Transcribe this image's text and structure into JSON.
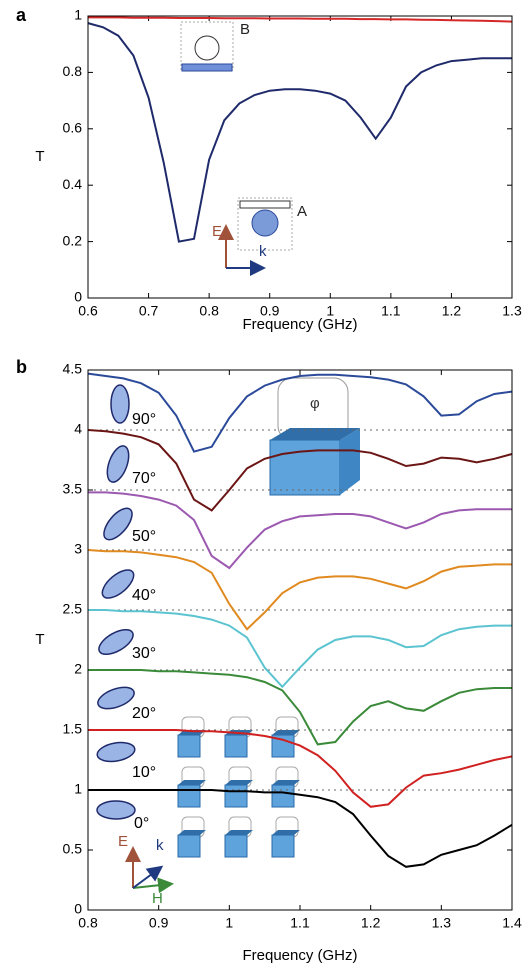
{
  "chart_data": [
    {
      "type": "line",
      "panel_label": "a",
      "x_label": "Frequency (GHz)",
      "y_label": "T",
      "x": [
        0.6,
        0.625,
        0.65,
        0.675,
        0.7,
        0.725,
        0.75,
        0.775,
        0.8,
        0.825,
        0.85,
        0.875,
        0.9,
        0.925,
        0.95,
        0.975,
        1.0,
        1.025,
        1.05,
        1.075,
        1.1,
        1.125,
        1.15,
        1.175,
        1.2,
        1.225,
        1.25,
        1.275,
        1.3
      ],
      "series": [
        {
          "color": "#d62728",
          "values": [
            0.995,
            0.995,
            0.995,
            0.994,
            0.994,
            0.994,
            0.993,
            0.993,
            0.993,
            0.992,
            0.992,
            0.992,
            0.991,
            0.991,
            0.991,
            0.99,
            0.99,
            0.99,
            0.989,
            0.989,
            0.988,
            0.988,
            0.987,
            0.986,
            0.985,
            0.984,
            0.983,
            0.982,
            0.98
          ]
        },
        {
          "color": "#1f2a6b",
          "values": [
            0.975,
            0.96,
            0.93,
            0.86,
            0.71,
            0.48,
            0.2,
            0.21,
            0.49,
            0.63,
            0.69,
            0.72,
            0.735,
            0.74,
            0.74,
            0.735,
            0.725,
            0.7,
            0.64,
            0.565,
            0.64,
            0.75,
            0.8,
            0.825,
            0.84,
            0.845,
            0.85,
            0.85,
            0.85
          ]
        }
      ],
      "xlim": [
        0.6,
        1.3
      ],
      "xticks": [
        0.6,
        0.7,
        0.8,
        0.9,
        1,
        1.1,
        1.2,
        1.3
      ],
      "ylim": [
        0,
        1
      ],
      "yticks": [
        0,
        0.2,
        0.4,
        0.6,
        0.8,
        1
      ],
      "annotations": [
        "B",
        "A",
        "E",
        "k"
      ]
    },
    {
      "type": "line",
      "panel_label": "b",
      "x_label": "Frequency (GHz)",
      "y_label": "T",
      "x": [
        0.8,
        0.825,
        0.85,
        0.875,
        0.9,
        0.925,
        0.95,
        0.975,
        1.0,
        1.025,
        1.05,
        1.075,
        1.1,
        1.125,
        1.15,
        1.175,
        1.2,
        1.225,
        1.25,
        1.275,
        1.3,
        1.325,
        1.35,
        1.375,
        1.4
      ],
      "series": [
        {
          "name": "90°",
          "color": "#2b4a9a",
          "values": [
            4.47,
            4.45,
            4.43,
            4.39,
            4.31,
            4.12,
            3.82,
            3.86,
            4.1,
            4.28,
            4.37,
            4.42,
            4.45,
            4.46,
            4.46,
            4.45,
            4.44,
            4.42,
            4.38,
            4.28,
            4.12,
            4.13,
            4.24,
            4.3,
            4.32
          ]
        },
        {
          "name": "70°",
          "color": "#6b1515",
          "values": [
            4.0,
            3.99,
            3.97,
            3.94,
            3.88,
            3.72,
            3.42,
            3.33,
            3.5,
            3.68,
            3.76,
            3.8,
            3.82,
            3.83,
            3.83,
            3.83,
            3.81,
            3.76,
            3.7,
            3.72,
            3.77,
            3.76,
            3.73,
            3.76,
            3.8
          ]
        },
        {
          "name": "50°",
          "color": "#9b59b0",
          "values": [
            3.48,
            3.48,
            3.47,
            3.45,
            3.42,
            3.37,
            3.25,
            2.95,
            2.85,
            3.02,
            3.17,
            3.24,
            3.28,
            3.29,
            3.3,
            3.3,
            3.28,
            3.23,
            3.18,
            3.23,
            3.3,
            3.33,
            3.34,
            3.34,
            3.34
          ]
        },
        {
          "name": "40°",
          "color": "#e08a20",
          "values": [
            3.0,
            2.99,
            2.99,
            2.98,
            2.96,
            2.94,
            2.9,
            2.81,
            2.55,
            2.34,
            2.48,
            2.64,
            2.73,
            2.77,
            2.78,
            2.78,
            2.76,
            2.72,
            2.68,
            2.74,
            2.82,
            2.86,
            2.87,
            2.88,
            2.88
          ]
        },
        {
          "name": "30°",
          "color": "#5bc4d0",
          "values": [
            2.5,
            2.5,
            2.49,
            2.49,
            2.48,
            2.47,
            2.45,
            2.42,
            2.37,
            2.27,
            2.02,
            1.86,
            2.02,
            2.17,
            2.25,
            2.28,
            2.28,
            2.25,
            2.19,
            2.2,
            2.29,
            2.34,
            2.36,
            2.37,
            2.37
          ]
        },
        {
          "name": "20°",
          "color": "#3a8a3a",
          "values": [
            2.0,
            2.0,
            2.0,
            2.0,
            1.99,
            1.99,
            1.98,
            1.97,
            1.96,
            1.94,
            1.9,
            1.83,
            1.65,
            1.38,
            1.4,
            1.57,
            1.7,
            1.74,
            1.68,
            1.66,
            1.74,
            1.81,
            1.84,
            1.85,
            1.85
          ]
        },
        {
          "name": "10°",
          "color": "#d02020",
          "values": [
            1.5,
            1.5,
            1.5,
            1.5,
            1.5,
            1.5,
            1.49,
            1.49,
            1.48,
            1.47,
            1.45,
            1.42,
            1.37,
            1.29,
            1.16,
            0.98,
            0.86,
            0.88,
            1.02,
            1.12,
            1.14,
            1.17,
            1.21,
            1.25,
            1.28
          ]
        },
        {
          "name": "0°",
          "color": "#000000",
          "values": [
            1.0,
            1.0,
            1.0,
            1.0,
            1.0,
            1.0,
            1.0,
            1.0,
            0.99,
            0.99,
            0.98,
            0.98,
            0.96,
            0.94,
            0.9,
            0.8,
            0.62,
            0.45,
            0.36,
            0.38,
            0.46,
            0.5,
            0.54,
            0.62,
            0.71
          ]
        }
      ],
      "xlim": [
        0.8,
        1.4
      ],
      "xticks": [
        0.8,
        0.9,
        1,
        1.1,
        1.2,
        1.3,
        1.4
      ],
      "ylim": [
        0,
        4.5
      ],
      "yticks": [
        0,
        0.5,
        1,
        1.5,
        2,
        2.5,
        3,
        3.5,
        4,
        4.5
      ],
      "dotted_lines": [
        1,
        1.5,
        2,
        2.5,
        3,
        3.5,
        4
      ],
      "annotations": [
        "E",
        "k",
        "H",
        "φ"
      ]
    }
  ]
}
